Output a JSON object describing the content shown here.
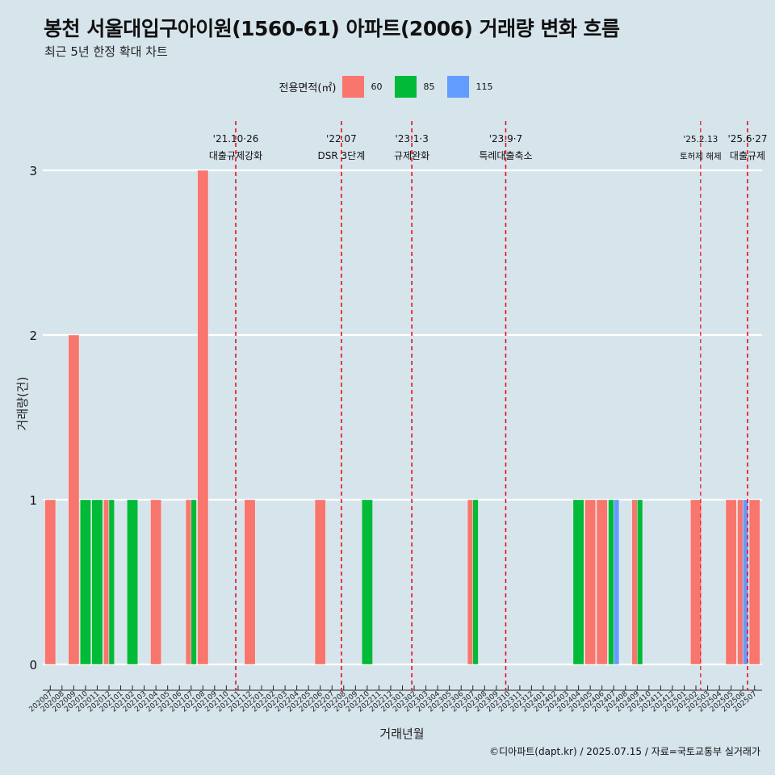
{
  "title": "봉천 서울대입구아이원(1560-61) 아파트(2006) 거래량 변화 흐름",
  "subtitle": "최근 5년 한정 확대 차트",
  "legend": {
    "title": "전용면적(㎡)",
    "items": [
      {
        "label": "60",
        "color": "#f8766d"
      },
      {
        "label": "85",
        "color": "#00ba38"
      },
      {
        "label": "115",
        "color": "#619cff"
      }
    ]
  },
  "caption": "©디아파트(dapt.kr) / 2025.07.15 / 자료=국토교통부 실거래가",
  "chart_data": {
    "type": "bar",
    "title": "봉천 서울대입구아이원(1560-61) 아파트(2006) 거래량 변화 흐름",
    "subtitle": "최근 5년 한정 확대 차트",
    "xlabel": "거래년월",
    "ylabel": "거래량(건)",
    "ylim": [
      0,
      3
    ],
    "yticks": [
      0,
      1,
      2,
      3
    ],
    "grid": "horizontal",
    "legend_position": "top",
    "categories": [
      "202007",
      "202008",
      "202009",
      "202010",
      "202011",
      "202012",
      "202101",
      "202102",
      "202103",
      "202104",
      "202105",
      "202106",
      "202107",
      "202108",
      "202109",
      "202110",
      "202111",
      "202112",
      "202201",
      "202202",
      "202203",
      "202204",
      "202205",
      "202206",
      "202207",
      "202208",
      "202209",
      "202210",
      "202211",
      "202212",
      "202301",
      "202302",
      "202303",
      "202304",
      "202305",
      "202306",
      "202307",
      "202308",
      "202309",
      "202310",
      "202311",
      "202312",
      "202401",
      "202402",
      "202403",
      "202404",
      "202405",
      "202406",
      "202407",
      "202408",
      "202409",
      "202410",
      "202411",
      "202412",
      "202501",
      "202502",
      "202503",
      "202504",
      "202505",
      "202506",
      "202507"
    ],
    "series": [
      {
        "name": "60",
        "values": [
          1,
          0,
          2,
          0,
          0,
          1,
          0,
          0,
          0,
          1,
          0,
          0,
          1,
          3,
          0,
          0,
          0,
          1,
          0,
          0,
          0,
          0,
          0,
          1,
          0,
          0,
          0,
          0,
          0,
          0,
          0,
          0,
          0,
          0,
          0,
          0,
          1,
          0,
          0,
          0,
          0,
          0,
          0,
          0,
          0,
          0,
          1,
          1,
          0,
          0,
          1,
          0,
          0,
          0,
          0,
          1,
          0,
          0,
          1,
          1,
          1
        ]
      },
      {
        "name": "85",
        "values": [
          0,
          0,
          0,
          1,
          1,
          1,
          0,
          1,
          0,
          0,
          0,
          0,
          1,
          0,
          0,
          0,
          0,
          0,
          0,
          0,
          0,
          0,
          0,
          0,
          0,
          0,
          0,
          1,
          0,
          0,
          0,
          0,
          0,
          0,
          0,
          0,
          1,
          0,
          0,
          0,
          0,
          0,
          0,
          0,
          0,
          1,
          0,
          0,
          1,
          0,
          1,
          0,
          0,
          0,
          0,
          0,
          0,
          0,
          0,
          0,
          0
        ]
      },
      {
        "name": "115",
        "values": [
          0,
          0,
          0,
          0,
          0,
          0,
          0,
          0,
          0,
          0,
          0,
          0,
          0,
          0,
          0,
          0,
          0,
          0,
          0,
          0,
          0,
          0,
          0,
          0,
          0,
          0,
          0,
          0,
          0,
          0,
          0,
          0,
          0,
          0,
          0,
          0,
          0,
          0,
          0,
          0,
          0,
          0,
          0,
          0,
          0,
          0,
          0,
          0,
          1,
          0,
          0,
          0,
          0,
          0,
          0,
          0,
          0,
          0,
          0,
          1,
          0
        ]
      }
    ],
    "events": [
      {
        "date": "'21.10·26",
        "label": "대출규제강화",
        "month_index": 15.8
      },
      {
        "date": "'22.07",
        "label": "DSR 3단계",
        "month_index": 24.8
      },
      {
        "date": "'23.1·3",
        "label": "규제완화",
        "month_index": 30.8
      },
      {
        "date": "'23.9·7",
        "label": "특례대출축소",
        "month_index": 38.8
      },
      {
        "date": "'25.2.13",
        "label": "토허제 해제",
        "month_index": 55.4,
        "small": true
      },
      {
        "date": "'25.6·27",
        "label": "대출규제",
        "month_index": 59.4
      }
    ]
  }
}
